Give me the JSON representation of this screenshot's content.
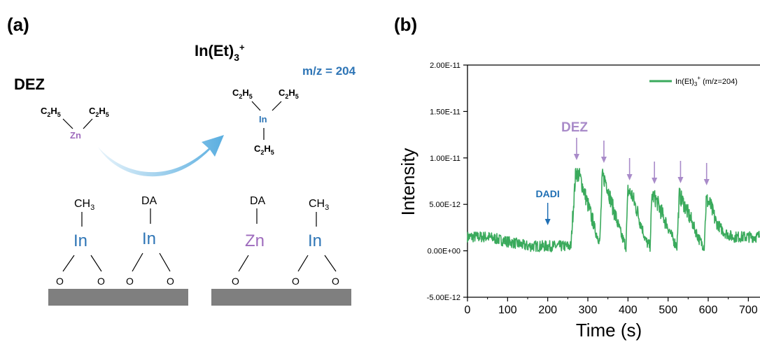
{
  "panel_a": {
    "label": "(a)",
    "product": {
      "base": "In(Et)",
      "sub": "3",
      "sup": "+"
    },
    "mz": "m/z = 204",
    "dez": "DEZ",
    "ethyl": {
      "base": "C",
      "sub1": "2",
      "mid": "H",
      "sub2": "5"
    },
    "zn_center": "Zn",
    "in_center": "In",
    "left_surface": {
      "top_labels": [
        "CH",
        "DA"
      ],
      "ch3_sub": "3",
      "metals": [
        "In",
        "In"
      ],
      "oxygens": [
        "O",
        "O",
        "O",
        "O"
      ]
    },
    "right_surface": {
      "top_labels": [
        "DA",
        "CH"
      ],
      "ch3_sub": "3",
      "metals": [
        "Zn",
        "In"
      ],
      "oxygens": [
        "O",
        "O",
        "O",
        "O"
      ]
    },
    "colors": {
      "in": "#2e75b6",
      "zn": "#9e6bbd",
      "mz": "#2e75b6",
      "surface": "#7f7f7f",
      "arrow": "#5aaee0"
    }
  },
  "panel_b": {
    "label": "(b)"
  },
  "chart_data": {
    "type": "line",
    "xlabel": "Time (s)",
    "ylabel": "Intensity",
    "xlim": [
      0,
      750
    ],
    "ylim": [
      -5e-12,
      2e-11
    ],
    "x_ticks": [
      0,
      100,
      200,
      300,
      400,
      500,
      600,
      700
    ],
    "x_tick_labels": [
      "0",
      "100",
      "200",
      "300",
      "400",
      "500",
      "600",
      "700"
    ],
    "y_ticks": [
      -5e-12,
      0,
      5e-12,
      1e-11,
      1.5e-11,
      2e-11
    ],
    "y_tick_labels": [
      "-5.00E-12",
      "0.00E+00",
      "5.00E-12",
      "1.00E-11",
      "1.50E-11",
      "2.00E-11"
    ],
    "legend": {
      "base": "In(Et)",
      "sub": "3",
      "sup": "+",
      "tail": " (m/z=204)",
      "position": "top-right"
    },
    "series": [
      {
        "name": "In(Et)3+ (m/z=204)",
        "color": "#3aaa5c",
        "x": [
          0,
          50,
          100,
          150,
          200,
          240,
          258,
          262,
          270,
          280,
          300,
          320,
          330,
          336,
          345,
          360,
          385,
          395,
          400,
          410,
          425,
          445,
          455,
          460,
          470,
          490,
          515,
          522,
          528,
          540,
          555,
          580,
          590,
          595,
          605,
          620,
          640,
          660,
          680,
          700,
          720,
          750
        ],
        "values": [
          1.5e-12,
          1.5e-12,
          1e-12,
          5e-13,
          5e-13,
          5e-13,
          5e-13,
          3.5e-12,
          8.5e-12,
          8e-12,
          5e-12,
          2e-12,
          1e-12,
          8e-12,
          7.5e-12,
          5e-12,
          1.5e-12,
          5e-13,
          6.5e-12,
          6e-12,
          4e-12,
          1e-12,
          5e-13,
          6e-12,
          5.5e-12,
          3.5e-12,
          1e-12,
          5e-13,
          6e-12,
          5e-12,
          3.5e-12,
          1e-12,
          5e-13,
          5.5e-12,
          5e-12,
          3e-12,
          2e-12,
          1.5e-12,
          1.5e-12,
          1.5e-12,
          1.5e-12,
          2e-12
        ]
      }
    ],
    "annotations": {
      "dadi": {
        "label": "DADI",
        "x": 200,
        "color": "#1f6fb4"
      },
      "dez": {
        "label": "DEZ",
        "color": "#a98bc9",
        "x": [
          272,
          340,
          404,
          466,
          531,
          596
        ]
      }
    }
  }
}
